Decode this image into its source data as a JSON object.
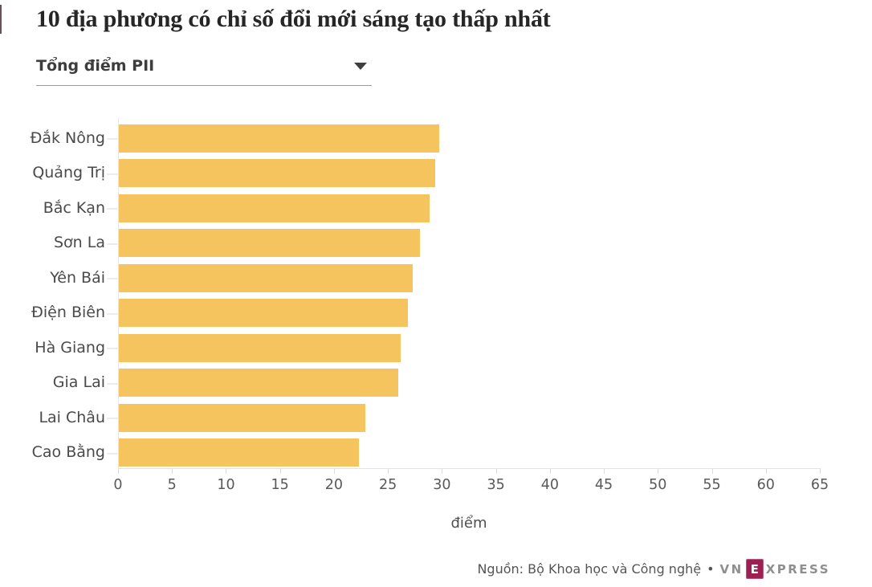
{
  "header": {
    "title": "10 địa phương có chỉ số đổi mới sáng tạo thấp nhất",
    "dropdown": {
      "selected": "Tổng điểm PII"
    }
  },
  "chart_data": {
    "type": "bar",
    "orientation": "horizontal",
    "title": "10 địa phương có chỉ số đổi mới sáng tạo thấp nhất",
    "categories": [
      "Đắk Nông",
      "Quảng Trị",
      "Bắc Kạn",
      "Sơn La",
      "Yên Bái",
      "Điện Biên",
      "Hà Giang",
      "Gia Lai",
      "Lai Châu",
      "Cao Bằng"
    ],
    "values": [
      29.7,
      29.3,
      28.8,
      27.9,
      27.2,
      26.8,
      26.1,
      25.9,
      22.8,
      22.2
    ],
    "xlabel": "điểm",
    "ylabel": "",
    "xlim": [
      0,
      65
    ],
    "xticks": [
      0,
      5,
      10,
      15,
      20,
      25,
      30,
      35,
      40,
      45,
      50,
      55,
      60,
      65
    ],
    "grid": false,
    "legend": false,
    "bar_color": "#F6C45F"
  },
  "footer": {
    "source": "Nguồn: Bộ Khoa học và Công nghệ",
    "separator": "•",
    "logo": {
      "prefix": "VN",
      "e": "E",
      "suffix": "XPRESS",
      "brand_color": "#9E2052",
      "text_color": "#8F8F8F"
    }
  }
}
